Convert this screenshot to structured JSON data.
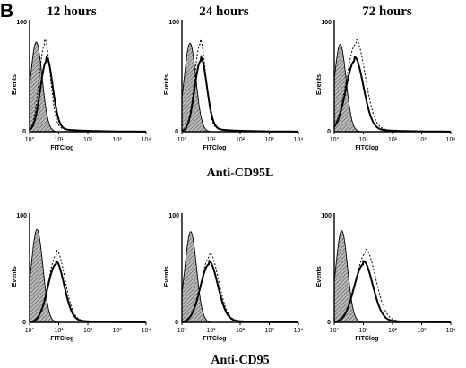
{
  "figure": {
    "panel_letter": "B",
    "column_titles": [
      "12 hours",
      "24 hours",
      "72 hours"
    ],
    "row_labels": [
      "Anti-CD95L",
      "Anti-CD95"
    ]
  },
  "colors": {
    "ink": "#000000",
    "hatch": "#555555",
    "background": "#ffffff"
  },
  "chart_data": [
    {
      "type": "area",
      "panel": "Anti-CD95L 12 hours",
      "xlabel": "FITClog",
      "ylabel": "Events",
      "x_scale": "log",
      "xlim": [
        1,
        10000
      ],
      "ylim": [
        0,
        100
      ],
      "x_ticks": [
        "10°",
        "10¹",
        "10²",
        "10³",
        "10⁴"
      ],
      "y_ticks": [
        "0",
        "100"
      ],
      "series": [
        {
          "style": "filled-hatched",
          "peak_x": 1.7,
          "peak_y": 80,
          "width": 0.2
        },
        {
          "style": "solid",
          "peak_x": 3.8,
          "peak_y": 63,
          "width": 0.21
        },
        {
          "style": "dashed",
          "peak_x": 3.3,
          "peak_y": 78,
          "width": 0.19
        }
      ]
    },
    {
      "type": "area",
      "panel": "Anti-CD95L 24 hours",
      "xlabel": "FITClog",
      "ylabel": "Events",
      "x_scale": "log",
      "xlim": [
        1,
        10000
      ],
      "ylim": [
        0,
        100
      ],
      "x_ticks": [
        "10°",
        "10¹",
        "10²",
        "10³",
        "10⁴"
      ],
      "y_ticks": [
        "0",
        "100"
      ],
      "series": [
        {
          "style": "filled-hatched",
          "peak_x": 1.9,
          "peak_y": 79,
          "width": 0.2
        },
        {
          "style": "solid",
          "peak_x": 4.4,
          "peak_y": 63,
          "width": 0.21
        },
        {
          "style": "dashed",
          "peak_x": 4.2,
          "peak_y": 78,
          "width": 0.19
        }
      ]
    },
    {
      "type": "area",
      "panel": "Anti-CD95L 72 hours",
      "xlabel": "FITClog",
      "ylabel": "Events",
      "x_scale": "log",
      "xlim": [
        1,
        10000
      ],
      "ylim": [
        0,
        100
      ],
      "x_ticks": [
        "10°",
        "10¹",
        "10²",
        "10³",
        "10⁴"
      ],
      "y_ticks": [
        "0",
        "100"
      ],
      "series": [
        {
          "style": "filled-hatched",
          "peak_x": 1.6,
          "peak_y": 78,
          "width": 0.2
        },
        {
          "style": "solid",
          "peak_x": 5.0,
          "peak_y": 63,
          "width": 0.3
        },
        {
          "style": "dashed",
          "peak_x": 5.5,
          "peak_y": 78,
          "width": 0.32
        }
      ]
    },
    {
      "type": "area",
      "panel": "Anti-CD95 12 hours",
      "xlabel": "FITClog",
      "ylabel": "Events",
      "x_scale": "log",
      "xlim": [
        1,
        10000
      ],
      "ylim": [
        0,
        100
      ],
      "x_ticks": [
        "10°",
        "10¹",
        "10²",
        "10³",
        "10⁴"
      ],
      "y_ticks": [
        "0",
        "100"
      ],
      "series": [
        {
          "style": "filled-hatched",
          "peak_x": 1.8,
          "peak_y": 85,
          "width": 0.2
        },
        {
          "style": "solid",
          "peak_x": 8.0,
          "peak_y": 53,
          "width": 0.28
        },
        {
          "style": "dashed",
          "peak_x": 8.5,
          "peak_y": 62,
          "width": 0.28
        }
      ]
    },
    {
      "type": "area",
      "panel": "Anti-CD95 24 hours",
      "xlabel": "FITClog",
      "ylabel": "Events",
      "x_scale": "log",
      "xlim": [
        1,
        10000
      ],
      "ylim": [
        0,
        100
      ],
      "x_ticks": [
        "10°",
        "10¹",
        "10²",
        "10³",
        "10⁴"
      ],
      "y_ticks": [
        "0",
        "100"
      ],
      "series": [
        {
          "style": "filled-hatched",
          "peak_x": 2.0,
          "peak_y": 83,
          "width": 0.2
        },
        {
          "style": "solid",
          "peak_x": 8.5,
          "peak_y": 53,
          "width": 0.3
        },
        {
          "style": "dashed",
          "peak_x": 9.0,
          "peak_y": 60,
          "width": 0.3
        }
      ]
    },
    {
      "type": "area",
      "panel": "Anti-CD95 72 hours",
      "xlabel": "FITClog",
      "ylabel": "Events",
      "x_scale": "log",
      "xlim": [
        1,
        10000
      ],
      "ylim": [
        0,
        100
      ],
      "x_ticks": [
        "10°",
        "10¹",
        "10²",
        "10³",
        "10⁴"
      ],
      "y_ticks": [
        "0",
        "100"
      ],
      "series": [
        {
          "style": "filled-hatched",
          "peak_x": 1.8,
          "peak_y": 84,
          "width": 0.2
        },
        {
          "style": "solid",
          "peak_x": 10.0,
          "peak_y": 53,
          "width": 0.32
        },
        {
          "style": "dashed",
          "peak_x": 12.0,
          "peak_y": 63,
          "width": 0.34
        }
      ]
    }
  ]
}
